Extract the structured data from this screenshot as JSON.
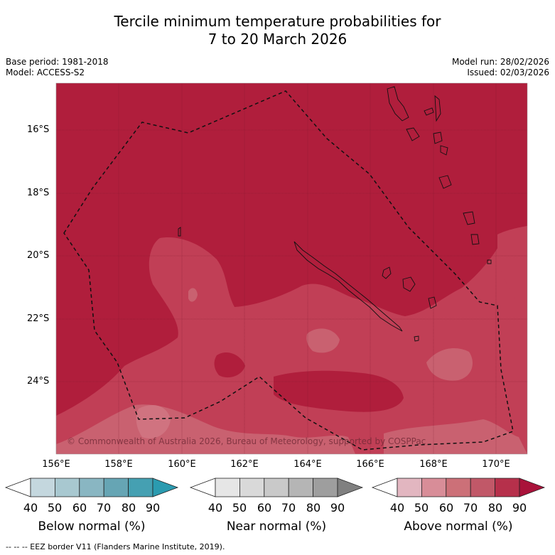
{
  "header": {
    "title_line1": "Tercile minimum temperature probabilities for",
    "title_line2": "7 to 20 March 2026"
  },
  "meta": {
    "base_period": "Base period: 1981-2018",
    "model": "Model: ACCESS-S2",
    "model_run": "Model run: 28/02/2026",
    "issued": "Issued: 02/03/2026"
  },
  "map": {
    "lat_labels": [
      "16°S",
      "18°S",
      "20°S",
      "22°S",
      "24°S"
    ],
    "lon_labels": [
      "156°E",
      "158°E",
      "160°E",
      "162°E",
      "164°E",
      "166°E",
      "168°E",
      "170°E"
    ],
    "copyright": "© Commonwealth of Australia 2026, Bureau of Meteorology, supported by COSPPac",
    "colors": {
      "band_80_90": "#b01e3c",
      "band_70_80": "#c13f56",
      "band_60_70": "#c96170",
      "ocean_frame": "#b21e3c"
    }
  },
  "legend": {
    "below": {
      "title": "Below normal (%)",
      "ticks": [
        "40",
        "50",
        "60",
        "70",
        "80",
        "90"
      ],
      "colors": [
        "#c4d7de",
        "#a8c8d0",
        "#89b6c2",
        "#66a5b4",
        "#45a0b2",
        "#2b9bb0"
      ]
    },
    "near": {
      "title": "Near normal (%)",
      "ticks": [
        "40",
        "50",
        "60",
        "70",
        "80",
        "90"
      ],
      "colors": [
        "#e6e6e6",
        "#d9d9d9",
        "#c9c9c9",
        "#b5b5b5",
        "#9e9e9e",
        "#808080"
      ]
    },
    "above": {
      "title": "Above normal (%)",
      "ticks": [
        "40",
        "50",
        "60",
        "70",
        "80",
        "90"
      ],
      "colors": [
        "#e2b6c0",
        "#d88d98",
        "#cc7078",
        "#c15868",
        "#b6304b",
        "#a9123a"
      ]
    }
  },
  "footer": {
    "eez_note": "-- -- -- EEZ border V11 (Flanders Marine Institute, 2019)."
  }
}
